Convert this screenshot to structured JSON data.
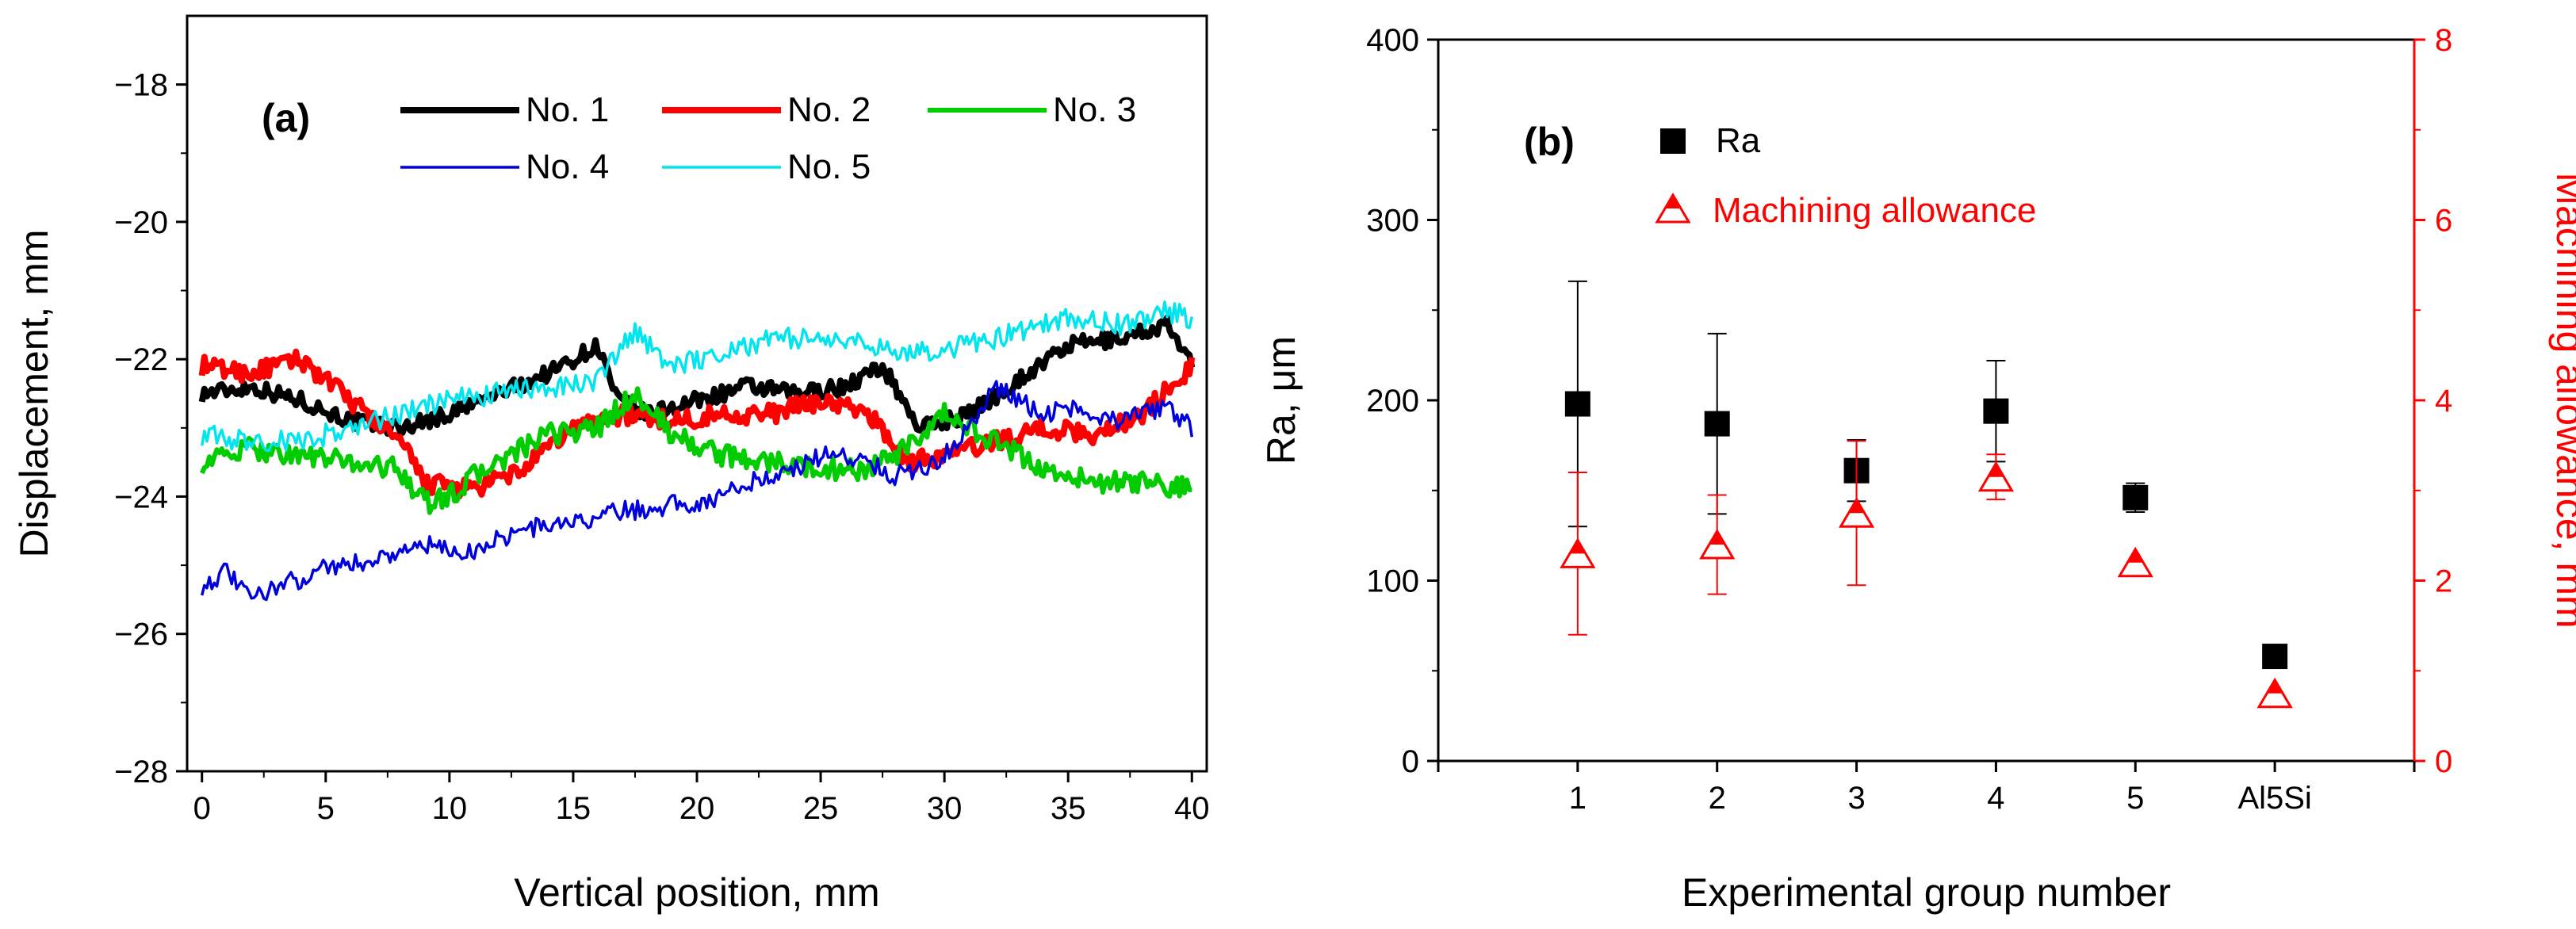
{
  "chart_data": [
    {
      "panel_label": "(a)",
      "type": "line",
      "xlabel": "Vertical position, mm",
      "ylabel": "Displacement, mm",
      "xlim": [
        -0.6,
        40.6
      ],
      "ylim": [
        -28,
        -17
      ],
      "xticks": [
        0,
        5,
        10,
        15,
        20,
        25,
        30,
        35,
        40
      ],
      "yticks": [
        -28,
        -26,
        -24,
        -22,
        -20,
        -18
      ],
      "grid": false,
      "legend": "top",
      "series": [
        {
          "name": "No. 1",
          "color": "#000000",
          "width": "thick",
          "x": [
            0,
            2,
            4,
            6,
            8,
            10,
            12,
            14,
            16,
            16.8,
            18,
            20,
            22,
            24,
            26,
            27.5,
            29,
            31,
            33,
            35,
            37,
            39,
            40
          ],
          "y": [
            -22.5,
            -22.4,
            -22.6,
            -22.9,
            -23.0,
            -22.8,
            -22.5,
            -22.2,
            -21.8,
            -22.6,
            -22.8,
            -22.6,
            -22.4,
            -22.5,
            -22.4,
            -22.1,
            -23.0,
            -22.8,
            -22.3,
            -21.8,
            -21.7,
            -21.5,
            -22.1
          ]
        },
        {
          "name": "No. 2",
          "color": "#ff0000",
          "width": "thick",
          "x": [
            0,
            2,
            4,
            6,
            8,
            9,
            11,
            13,
            15,
            17,
            19,
            21,
            23,
            25,
            27,
            28.5,
            30,
            32,
            34,
            36,
            38,
            40
          ],
          "y": [
            -22.1,
            -22.2,
            -22.0,
            -22.6,
            -23.2,
            -23.8,
            -23.9,
            -23.6,
            -23.0,
            -22.8,
            -22.9,
            -22.8,
            -22.8,
            -22.6,
            -22.8,
            -23.5,
            -23.4,
            -23.2,
            -23.0,
            -23.1,
            -22.8,
            -22.1
          ]
        },
        {
          "name": "No. 3",
          "color": "#00cc00",
          "width": "medium",
          "x": [
            0,
            2,
            4,
            6,
            8,
            9,
            10,
            11,
            12,
            14,
            16,
            17.5,
            19,
            21,
            23,
            25,
            27,
            29,
            30,
            31,
            32,
            34,
            36,
            38,
            40
          ],
          "y": [
            -23.5,
            -23.3,
            -23.4,
            -23.5,
            -23.6,
            -24.1,
            -24.0,
            -23.7,
            -23.5,
            -23.1,
            -23.0,
            -22.5,
            -23.1,
            -23.4,
            -23.5,
            -23.6,
            -23.6,
            -23.2,
            -22.8,
            -23.0,
            -23.2,
            -23.6,
            -23.8,
            -23.8,
            -23.9
          ]
        },
        {
          "name": "No. 4",
          "color": "#0000dd",
          "width": "thin",
          "x": [
            0,
            1,
            2,
            3,
            4,
            5,
            6,
            7,
            8,
            9,
            10,
            11,
            12,
            13,
            14,
            15,
            16,
            17,
            18,
            19,
            20,
            21,
            22,
            23,
            24,
            25,
            26,
            27,
            28,
            29,
            30,
            31,
            32,
            33,
            34,
            35,
            36,
            37,
            38,
            39,
            40
          ],
          "y": [
            -25.3,
            -25.1,
            -25.5,
            -25.3,
            -25.2,
            -25.0,
            -25.0,
            -24.9,
            -24.8,
            -24.7,
            -24.8,
            -24.8,
            -24.6,
            -24.5,
            -24.4,
            -24.4,
            -24.3,
            -24.2,
            -24.2,
            -24.1,
            -24.1,
            -24.0,
            -23.8,
            -23.7,
            -23.6,
            -23.4,
            -23.4,
            -23.5,
            -23.7,
            -23.6,
            -23.4,
            -23.0,
            -22.4,
            -22.6,
            -22.8,
            -22.7,
            -22.8,
            -22.9,
            -22.8,
            -22.7,
            -23.0
          ]
        },
        {
          "name": "No. 5",
          "color": "#00e5ee",
          "width": "thin",
          "x": [
            0,
            2,
            4,
            6,
            8,
            10,
            12,
            14,
            16,
            17.5,
            19,
            21,
            23,
            25,
            27,
            29,
            31,
            33,
            35,
            37,
            39,
            40
          ],
          "y": [
            -23.1,
            -23.2,
            -23.2,
            -23.0,
            -22.8,
            -22.6,
            -22.5,
            -22.4,
            -22.3,
            -21.6,
            -22.1,
            -21.9,
            -21.7,
            -21.7,
            -21.8,
            -21.9,
            -21.8,
            -21.6,
            -21.4,
            -21.5,
            -21.3,
            -21.4
          ]
        }
      ]
    },
    {
      "panel_label": "(b)",
      "type": "scatter",
      "xlabel": "Experimental group number",
      "ylabel": "Ra, μm",
      "y2label": "Machining allowance, mm",
      "categories": [
        "1",
        "2",
        "3",
        "4",
        "5",
        "Al5Si"
      ],
      "xlim": [
        0,
        7
      ],
      "ylim": [
        0,
        400
      ],
      "y2lim": [
        0,
        8
      ],
      "yticks": [
        0,
        100,
        200,
        300,
        400
      ],
      "y2ticks": [
        0,
        2,
        4,
        6,
        8
      ],
      "grid": false,
      "legend": "top-left",
      "series": [
        {
          "name": "Ra",
          "axis": "left",
          "marker": "filled-square",
          "color": "#000000",
          "values": [
            198,
            187,
            161,
            194,
            146,
            58
          ],
          "errors": [
            68,
            50,
            17,
            28,
            8,
            0
          ]
        },
        {
          "name": "Machining allowance",
          "axis": "right",
          "marker": "half-filled-triangle",
          "color": "#ff0000",
          "values": [
            2.3,
            2.4,
            2.75,
            3.15,
            2.2,
            0.75
          ],
          "errors": [
            0.9,
            0.55,
            0.8,
            0.25,
            0.0,
            0.0
          ]
        }
      ]
    }
  ]
}
